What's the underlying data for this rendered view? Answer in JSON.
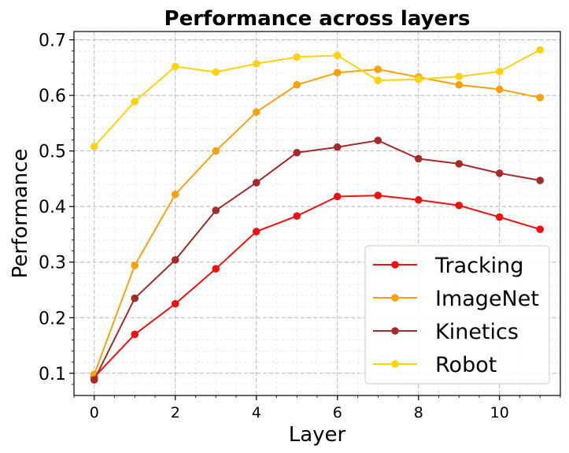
{
  "chart_data": {
    "type": "line",
    "title": "Performance across layers",
    "xlabel": "Layer",
    "ylabel": "Performance",
    "x": [
      0,
      1,
      2,
      3,
      4,
      5,
      6,
      7,
      8,
      9,
      10,
      11
    ],
    "xlim": [
      -0.5,
      11.5
    ],
    "ylim": [
      0.06,
      0.715
    ],
    "xticks": [
      0,
      2,
      4,
      6,
      8,
      10
    ],
    "yticks": [
      0.1,
      0.2,
      0.3,
      0.4,
      0.5,
      0.6,
      0.7
    ],
    "ytick_labels": [
      "0.1",
      "0.2",
      "0.3",
      "0.4",
      "0.5",
      "0.6",
      "0.7"
    ],
    "xtick_labels": [
      "0",
      "2",
      "4",
      "6",
      "8",
      "10"
    ],
    "grid": true,
    "legend_position": "lower-right",
    "series": [
      {
        "name": "Tracking",
        "color": "#ee1111",
        "values": [
          0.093,
          0.17,
          0.225,
          0.288,
          0.355,
          0.383,
          0.418,
          0.42,
          0.412,
          0.402,
          0.381,
          0.359
        ]
      },
      {
        "name": "ImageNet",
        "color": "#f6a20e",
        "values": [
          0.098,
          0.294,
          0.422,
          0.5,
          0.57,
          0.619,
          0.641,
          0.647,
          0.633,
          0.619,
          0.611,
          0.596
        ]
      },
      {
        "name": "Kinetics",
        "color": "#a52a2a",
        "values": [
          0.088,
          0.235,
          0.304,
          0.393,
          0.443,
          0.497,
          0.507,
          0.519,
          0.486,
          0.477,
          0.46,
          0.447
        ]
      },
      {
        "name": "Robot",
        "color": "#fdd20e",
        "values": [
          0.508,
          0.589,
          0.652,
          0.642,
          0.657,
          0.669,
          0.672,
          0.627,
          0.629,
          0.634,
          0.643,
          0.682
        ]
      }
    ]
  }
}
